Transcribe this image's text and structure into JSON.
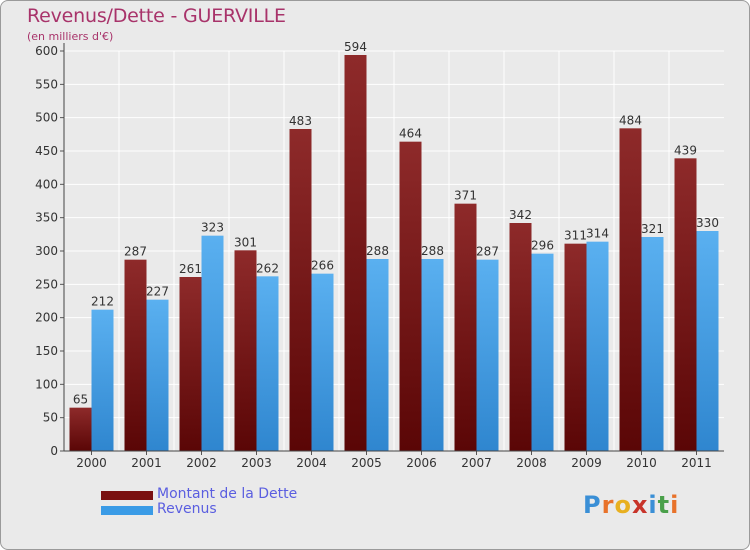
{
  "header": {
    "title": "Revenus/Dette - GUERVILLE",
    "subtitle": "(en milliers d'€)"
  },
  "legend": [
    {
      "label": "Montant de la Dette",
      "color": "#7a1010"
    },
    {
      "label": "Revenus",
      "color": "#3a9be6"
    }
  ],
  "logo": {
    "text": "Proxiti"
  },
  "chart_data": {
    "type": "bar",
    "title": "Revenus/Dette - GUERVILLE",
    "subtitle": "(en milliers d'€)",
    "categories": [
      "2000",
      "2001",
      "2002",
      "2003",
      "2004",
      "2005",
      "2006",
      "2007",
      "2008",
      "2009",
      "2010",
      "2011"
    ],
    "series": [
      {
        "name": "Montant de la Dette",
        "color": "#7a1010",
        "values": [
          65,
          287,
          261,
          301,
          483,
          594,
          464,
          371,
          342,
          311,
          484,
          439
        ]
      },
      {
        "name": "Revenus",
        "color": "#3a9be6",
        "values": [
          212,
          227,
          323,
          262,
          266,
          288,
          288,
          287,
          296,
          314,
          321,
          330
        ]
      }
    ],
    "ylim": [
      0,
      600
    ],
    "yticks": [
      0,
      50,
      100,
      150,
      200,
      250,
      300,
      350,
      400,
      450,
      500,
      550,
      600
    ],
    "grid": true,
    "legend_position": "bottom-left"
  }
}
